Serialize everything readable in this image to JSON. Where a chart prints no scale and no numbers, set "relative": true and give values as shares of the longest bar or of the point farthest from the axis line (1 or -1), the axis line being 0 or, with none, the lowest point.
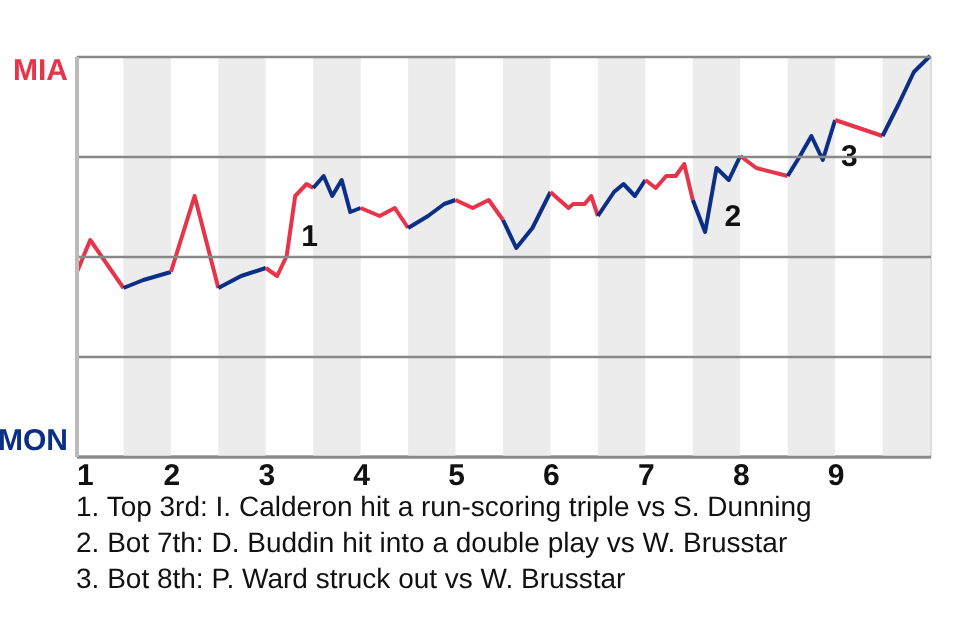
{
  "chart_data": {
    "type": "line",
    "relative": true,
    "xlim": [
      1,
      10
    ],
    "xticks": [
      1,
      2,
      3,
      4,
      5,
      6,
      7,
      8,
      9
    ],
    "grid": "y",
    "marker": "none",
    "line_style": "solid",
    "series": [
      {
        "color": "#e8344a",
        "x": [
          1.01,
          1.15,
          1.5
        ],
        "values": [
          0.46,
          0.54,
          0.42
        ]
      },
      {
        "color": "#0b2f86",
        "x": [
          1.5,
          1.71,
          2.0
        ],
        "values": [
          0.42,
          0.44,
          0.46
        ]
      },
      {
        "color": "#e8344a",
        "x": [
          2.0,
          2.25,
          2.5
        ],
        "values": [
          0.46,
          0.65,
          0.42
        ]
      },
      {
        "color": "#0b2f86",
        "x": [
          2.5,
          2.74,
          3.0
        ],
        "values": [
          0.42,
          0.45,
          0.47
        ]
      },
      {
        "color": "#e8344a",
        "x": [
          3.0,
          3.12,
          3.22,
          3.31,
          3.43,
          3.5
        ],
        "values": [
          0.47,
          0.45,
          0.5,
          0.65,
          0.68,
          0.67
        ]
      },
      {
        "color": "#0b2f86",
        "x": [
          3.5,
          3.61,
          3.7,
          3.8,
          3.89,
          4.0
        ],
        "values": [
          0.67,
          0.7,
          0.65,
          0.69,
          0.61,
          0.62
        ]
      },
      {
        "color": "#e8344a",
        "x": [
          4.0,
          4.2,
          4.36,
          4.5
        ],
        "values": [
          0.62,
          0.6,
          0.62,
          0.57
        ]
      },
      {
        "color": "#0b2f86",
        "x": [
          4.5,
          4.71,
          4.88,
          5.0
        ],
        "values": [
          0.57,
          0.6,
          0.63,
          0.64
        ]
      },
      {
        "color": "#e8344a",
        "x": [
          5.0,
          5.18,
          5.35,
          5.5
        ],
        "values": [
          0.64,
          0.62,
          0.64,
          0.59
        ]
      },
      {
        "color": "#0b2f86",
        "x": [
          5.5,
          5.64,
          5.81,
          6.0
        ],
        "values": [
          0.59,
          0.52,
          0.57,
          0.66
        ]
      },
      {
        "color": "#e8344a",
        "x": [
          6.0,
          6.19,
          6.24,
          6.36,
          6.43,
          6.5
        ],
        "values": [
          0.66,
          0.62,
          0.63,
          0.63,
          0.65,
          0.6
        ]
      },
      {
        "color": "#0b2f86",
        "x": [
          6.5,
          6.67,
          6.77,
          6.89,
          7.0
        ],
        "values": [
          0.6,
          0.66,
          0.68,
          0.65,
          0.69
        ]
      },
      {
        "color": "#e8344a",
        "x": [
          7.0,
          7.11,
          7.22,
          7.32,
          7.41,
          7.5
        ],
        "values": [
          0.69,
          0.67,
          0.7,
          0.7,
          0.73,
          0.64
        ]
      },
      {
        "color": "#0b2f86",
        "x": [
          7.5,
          7.63,
          7.75,
          7.88,
          8.0
        ],
        "values": [
          0.64,
          0.56,
          0.72,
          0.69,
          0.75
        ]
      },
      {
        "color": "#e8344a",
        "x": [
          8.0,
          8.17,
          8.5
        ],
        "values": [
          0.75,
          0.72,
          0.7
        ]
      },
      {
        "color": "#0b2f86",
        "x": [
          8.5,
          8.63,
          8.75,
          8.87,
          9.0
        ],
        "values": [
          0.7,
          0.75,
          0.8,
          0.74,
          0.84
        ]
      },
      {
        "color": "#e8344a",
        "x": [
          9.0,
          9.5
        ],
        "values": [
          0.84,
          0.8
        ]
      },
      {
        "color": "#0b2f86",
        "x": [
          9.5,
          9.67,
          9.83,
          10.0
        ],
        "values": [
          0.8,
          0.88,
          0.96,
          1.0
        ]
      }
    ],
    "bands": [
      {
        "axis": "x",
        "from": 1.5,
        "to": 2,
        "color": "#ececec"
      },
      {
        "axis": "x",
        "from": 2.5,
        "to": 3,
        "color": "#ececec"
      },
      {
        "axis": "x",
        "from": 3.5,
        "to": 4,
        "color": "#ececec"
      },
      {
        "axis": "x",
        "from": 4.5,
        "to": 5,
        "color": "#ececec"
      },
      {
        "axis": "x",
        "from": 5.5,
        "to": 6,
        "color": "#ececec"
      },
      {
        "axis": "x",
        "from": 6.5,
        "to": 7,
        "color": "#ececec"
      },
      {
        "axis": "x",
        "from": 7.5,
        "to": 8,
        "color": "#ececec"
      },
      {
        "axis": "x",
        "from": 8.5,
        "to": 9,
        "color": "#ececec"
      },
      {
        "axis": "x",
        "from": 9.5,
        "to": 10,
        "color": "#ececec"
      }
    ],
    "annotations": [
      "MIA",
      "MON",
      {
        "text": "1",
        "x": 3.31,
        "y": 0.55
      },
      {
        "text": "2",
        "x": 7.77,
        "y": 0.6
      },
      {
        "text": "3",
        "x": 9.0,
        "y": 0.75
      },
      "1. Top 3rd: I. Calderon hit a run-scoring triple vs S. Dunning",
      "2. Bot 7th: D. Buddin hit into a double play vs W. Brusstar",
      "3. Bot 8th: P. Ward struck out vs W. Brusstar"
    ]
  }
}
